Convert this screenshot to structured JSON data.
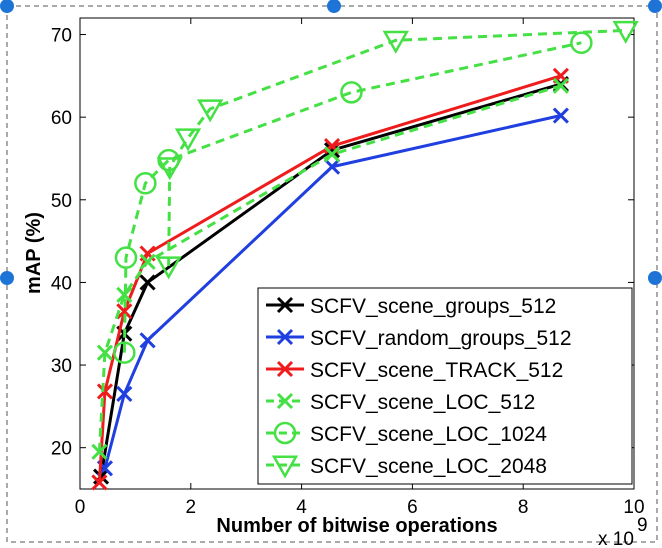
{
  "chart_data": {
    "type": "line",
    "xlabel": "Number of bitwise operations",
    "ylabel": "mAP (%)",
    "x_multiplier_label": {
      "base": "x 10",
      "exponent": "9"
    },
    "xlim": [
      0,
      10
    ],
    "ylim": [
      15,
      72
    ],
    "xticks": [
      0,
      2,
      4,
      6,
      8,
      10
    ],
    "yticks": [
      20,
      30,
      40,
      50,
      60,
      70
    ],
    "grid": false,
    "legend_position": "bottom-right",
    "series": [
      {
        "name": "SCFV_scene_groups_512",
        "color": "#000000",
        "marker": "x",
        "dash": "solid",
        "x": [
          0.38,
          0.8,
          1.22,
          4.55,
          8.68
        ],
        "y": [
          16.5,
          33.8,
          40.0,
          56.0,
          64.0
        ]
      },
      {
        "name": "SCFV_random_groups_512",
        "color": "#1f3fe0",
        "marker": "x",
        "dash": "solid",
        "x": [
          0.45,
          0.8,
          1.22,
          4.55,
          8.68
        ],
        "y": [
          17.5,
          26.5,
          33.0,
          54.0,
          60.2
        ]
      },
      {
        "name": "SCFV_scene_TRACK_512",
        "color": "#ee1c1c",
        "marker": "x",
        "dash": "solid",
        "x": [
          0.35,
          0.45,
          0.8,
          1.22,
          4.55,
          8.68
        ],
        "y": [
          15.8,
          26.8,
          36.5,
          43.5,
          56.5,
          65.0
        ]
      },
      {
        "name": "SCFV_scene_LOC_512",
        "color": "#44e044",
        "marker": "x",
        "dash": "dashed",
        "x": [
          0.35,
          0.45,
          0.8,
          1.22,
          4.55,
          8.68
        ],
        "y": [
          19.5,
          31.5,
          38.5,
          42.5,
          55.5,
          63.8
        ]
      },
      {
        "name": "SCFV_scene_LOC_1024",
        "color": "#44e044",
        "marker": "o",
        "dash": "dashed",
        "x": [
          0.8,
          0.83,
          1.18,
          1.6,
          4.9,
          9.05
        ],
        "y": [
          31.5,
          43.0,
          52.0,
          54.8,
          63.0,
          69.0
        ]
      },
      {
        "name": "SCFV_scene_LOC_2048",
        "color": "#44e044",
        "marker": "v",
        "dash": "dashed",
        "x": [
          1.6,
          1.62,
          1.95,
          2.35,
          5.7,
          9.85
        ],
        "y": [
          42.0,
          54.0,
          57.5,
          61.0,
          69.3,
          70.5
        ]
      }
    ]
  }
}
